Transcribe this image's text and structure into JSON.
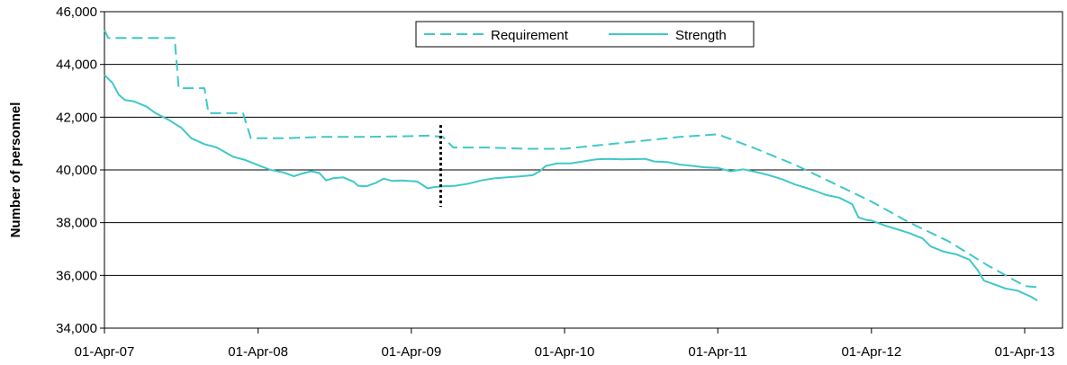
{
  "chart_data": {
    "type": "line",
    "title": "",
    "xlabel": "",
    "ylabel": "Number of personnel",
    "ylim": [
      34000,
      46000
    ],
    "xlim": [
      "2007-04-01",
      "2013-05-01"
    ],
    "x_tick_labels": [
      "01-Apr-07",
      "01-Apr-08",
      "01-Apr-09",
      "01-Apr-10",
      "01-Apr-11",
      "01-Apr-12",
      "01-Apr-13"
    ],
    "y_tick_labels": [
      "34,000",
      "36,000",
      "38,000",
      "40,000",
      "42,000",
      "44,000",
      "46,000"
    ],
    "y_ticks": [
      34000,
      36000,
      38000,
      40000,
      42000,
      44000,
      46000
    ],
    "grid": "horizontal",
    "legend_position": "top-center",
    "colors": {
      "series": "#40c8c8",
      "marker": "#000000",
      "grid": "#000000"
    },
    "series": [
      {
        "name": "Requirement",
        "style": "dashed",
        "points": [
          [
            "2007-04-01",
            45300
          ],
          [
            "2007-04-10",
            45000
          ],
          [
            "2007-09-15",
            45000
          ],
          [
            "2007-09-25",
            43100
          ],
          [
            "2007-11-25",
            43100
          ],
          [
            "2007-12-05",
            42150
          ],
          [
            "2008-02-25",
            42150
          ],
          [
            "2008-03-15",
            41200
          ],
          [
            "2008-06-01",
            41200
          ],
          [
            "2008-09-01",
            41250
          ],
          [
            "2008-12-01",
            41250
          ],
          [
            "2009-03-01",
            41270
          ],
          [
            "2009-05-15",
            41300
          ],
          [
            "2009-06-15",
            41250
          ],
          [
            "2009-07-10",
            40850
          ],
          [
            "2009-10-01",
            40850
          ],
          [
            "2010-01-01",
            40800
          ],
          [
            "2010-04-01",
            40800
          ],
          [
            "2010-07-01",
            40950
          ],
          [
            "2010-10-01",
            41100
          ],
          [
            "2011-01-01",
            41250
          ],
          [
            "2011-04-01",
            41350
          ],
          [
            "2011-07-01",
            40800
          ],
          [
            "2011-10-01",
            40200
          ],
          [
            "2012-01-01",
            39500
          ],
          [
            "2012-04-01",
            38800
          ],
          [
            "2012-07-01",
            38000
          ],
          [
            "2012-10-01",
            37300
          ],
          [
            "2013-01-01",
            36400
          ],
          [
            "2013-04-01",
            35600
          ],
          [
            "2013-05-01",
            35550
          ]
        ]
      },
      {
        "name": "Strength",
        "style": "solid",
        "points": [
          [
            "2007-04-01",
            43600
          ],
          [
            "2007-04-20",
            43300
          ],
          [
            "2007-05-05",
            42850
          ],
          [
            "2007-05-20",
            42650
          ],
          [
            "2007-06-10",
            42600
          ],
          [
            "2007-07-10",
            42400
          ],
          [
            "2007-08-01",
            42150
          ],
          [
            "2007-09-01",
            41900
          ],
          [
            "2007-10-01",
            41600
          ],
          [
            "2007-10-25",
            41200
          ],
          [
            "2007-11-25",
            40980
          ],
          [
            "2007-12-25",
            40850
          ],
          [
            "2008-02-01",
            40500
          ],
          [
            "2008-03-01",
            40380
          ],
          [
            "2008-04-01",
            40180
          ],
          [
            "2008-05-01",
            40000
          ],
          [
            "2008-06-01",
            39900
          ],
          [
            "2008-06-25",
            39760
          ],
          [
            "2008-07-15",
            39860
          ],
          [
            "2008-08-05",
            39950
          ],
          [
            "2008-08-25",
            39880
          ],
          [
            "2008-09-10",
            39600
          ],
          [
            "2008-09-25",
            39680
          ],
          [
            "2008-10-20",
            39720
          ],
          [
            "2008-11-15",
            39550
          ],
          [
            "2008-11-25",
            39400
          ],
          [
            "2008-12-15",
            39380
          ],
          [
            "2009-01-05",
            39500
          ],
          [
            "2009-01-25",
            39670
          ],
          [
            "2009-02-15",
            39580
          ],
          [
            "2009-03-10",
            39600
          ],
          [
            "2009-03-25",
            39580
          ],
          [
            "2009-04-15",
            39560
          ],
          [
            "2009-05-10",
            39300
          ],
          [
            "2009-05-25",
            39350
          ],
          [
            "2009-06-15",
            39380
          ],
          [
            "2009-07-15",
            39400
          ],
          [
            "2009-08-15",
            39480
          ],
          [
            "2009-09-15",
            39600
          ],
          [
            "2009-10-15",
            39680
          ],
          [
            "2009-11-15",
            39720
          ],
          [
            "2009-12-15",
            39750
          ],
          [
            "2010-01-15",
            39800
          ],
          [
            "2010-02-01",
            39950
          ],
          [
            "2010-02-15",
            40150
          ],
          [
            "2010-03-15",
            40250
          ],
          [
            "2010-04-15",
            40250
          ],
          [
            "2010-05-15",
            40320
          ],
          [
            "2010-06-15",
            40400
          ],
          [
            "2010-07-15",
            40420
          ],
          [
            "2010-08-15",
            40400
          ],
          [
            "2010-09-15",
            40410
          ],
          [
            "2010-10-10",
            40420
          ],
          [
            "2010-11-01",
            40320
          ],
          [
            "2010-12-01",
            40300
          ],
          [
            "2011-01-01",
            40200
          ],
          [
            "2011-02-01",
            40150
          ],
          [
            "2011-03-01",
            40100
          ],
          [
            "2011-04-01",
            40080
          ],
          [
            "2011-05-01",
            39950
          ],
          [
            "2011-06-01",
            40020
          ],
          [
            "2011-07-01",
            39920
          ],
          [
            "2011-08-01",
            39800
          ],
          [
            "2011-09-01",
            39650
          ],
          [
            "2011-10-01",
            39450
          ],
          [
            "2011-11-01",
            39300
          ],
          [
            "2011-11-20",
            39200
          ],
          [
            "2011-12-15",
            39050
          ],
          [
            "2012-01-15",
            38950
          ],
          [
            "2012-02-15",
            38700
          ],
          [
            "2012-03-01",
            38200
          ],
          [
            "2012-03-20",
            38100
          ],
          [
            "2012-04-01",
            38080
          ],
          [
            "2012-05-01",
            37900
          ],
          [
            "2012-06-01",
            37750
          ],
          [
            "2012-07-01",
            37600
          ],
          [
            "2012-08-01",
            37400
          ],
          [
            "2012-08-20",
            37100
          ],
          [
            "2012-09-20",
            36900
          ],
          [
            "2012-10-20",
            36800
          ],
          [
            "2012-11-20",
            36600
          ],
          [
            "2012-12-10",
            36200
          ],
          [
            "2012-12-25",
            35800
          ],
          [
            "2013-01-20",
            35650
          ],
          [
            "2013-02-15",
            35500
          ],
          [
            "2013-03-15",
            35420
          ],
          [
            "2013-04-15",
            35200
          ],
          [
            "2013-05-01",
            35050
          ]
        ]
      }
    ],
    "annotations": [
      {
        "type": "vertical-dotted-line",
        "x": "2009-06-10",
        "y_from": 38600,
        "y_to": 41700
      }
    ]
  }
}
